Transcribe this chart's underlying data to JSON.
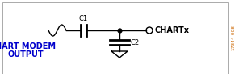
{
  "bg_color": "#ffffff",
  "border_color": "#888888",
  "line_color": "#000000",
  "text_color_label": "#0000cc",
  "text_color_black": "#000000",
  "text_color_side": "#cc6600",
  "title_left_line1": "HART MODEM",
  "title_left_line2": "OUTPUT",
  "label_c1": "C1",
  "label_c2": "C2",
  "label_out": "CHARTx",
  "label_side": "17344-008",
  "fig_width": 3.01,
  "fig_height": 0.95,
  "dpi": 100
}
